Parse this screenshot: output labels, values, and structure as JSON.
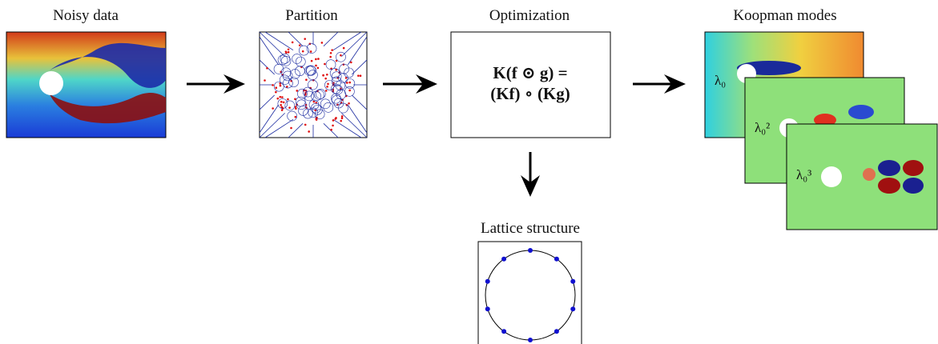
{
  "stages": [
    {
      "title": "Noisy data"
    },
    {
      "title": "Partition"
    },
    {
      "title": "Optimization",
      "formula": [
        "K(f ⊙ g) =",
        "(Kf) ∘ (Kg)"
      ]
    },
    {
      "title": "Koopman modes",
      "mode_labels": [
        "λ₀",
        "λ₀²",
        "λ₀³"
      ]
    },
    {
      "title": "Lattice structure"
    }
  ]
}
